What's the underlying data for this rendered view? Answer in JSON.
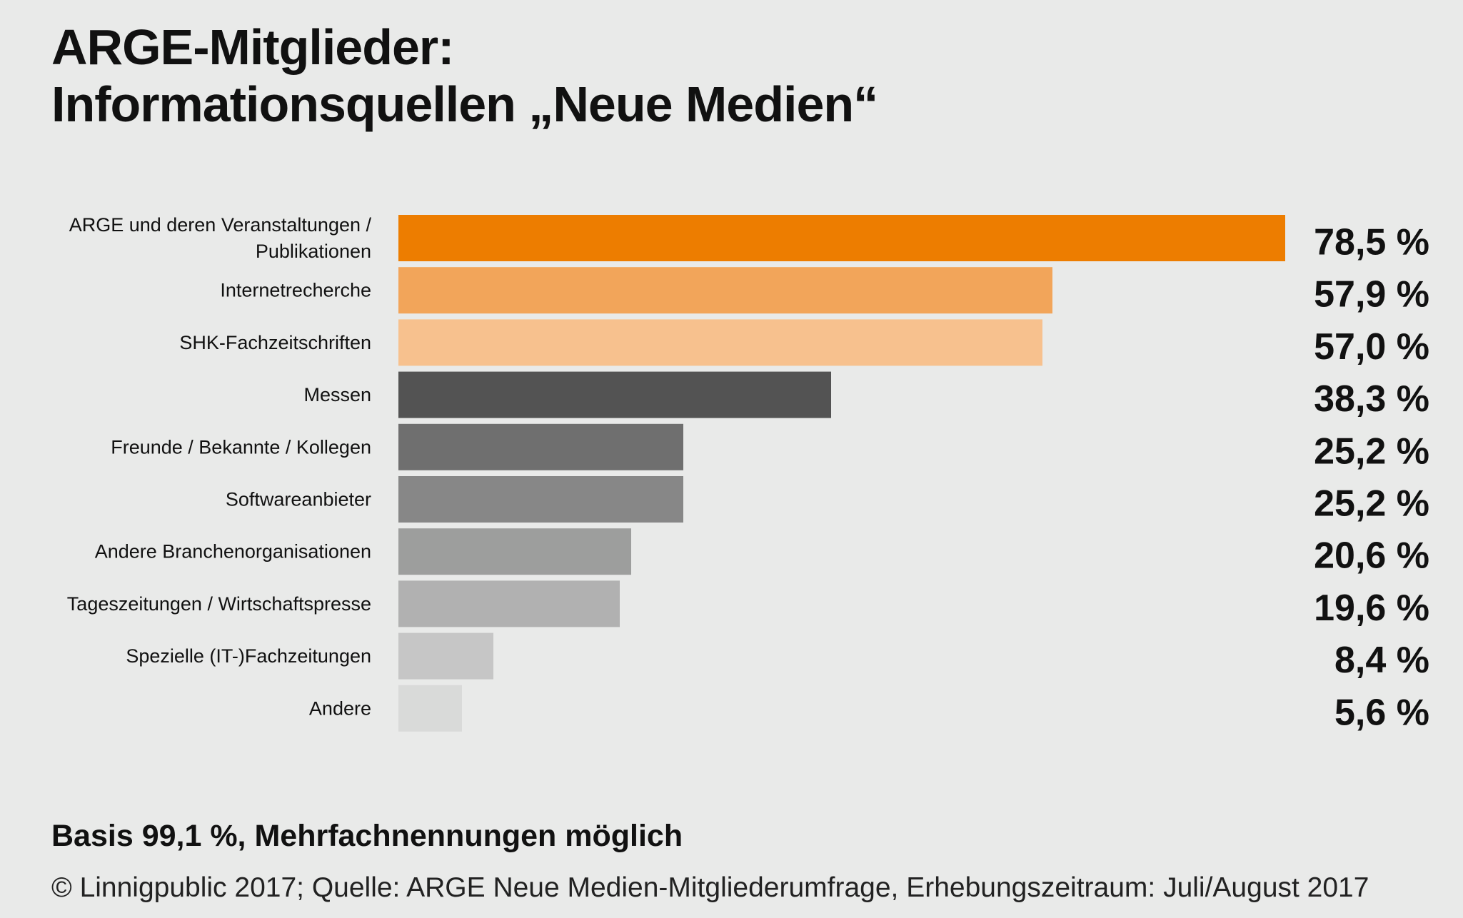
{
  "title_line1": "ARGE-Mitglieder:",
  "title_line2": "Informationsquellen „Neue Medien“",
  "note": "Basis 99,1 %, Mehrfachnennungen möglich",
  "source": "© Linnigpublic 2017; Quelle: ARGE Neue Medien-Mitgliederumfrage, Erhebungszeitraum: Juli/August 2017",
  "chart_data": {
    "type": "bar",
    "orientation": "horizontal",
    "categories": [
      "ARGE und deren Veranstaltungen / Publikationen",
      "Internetrecherche",
      "SHK-Fachzeitschriften",
      "Messen",
      "Freunde / Bekannte / Kollegen",
      "Softwareanbieter",
      "Andere Branchenorganisationen",
      "Tageszeitungen / Wirtschaftspresse",
      "Spezielle (IT-)Fachzeitungen",
      "Andere"
    ],
    "category_lines": [
      [
        "ARGE und deren Veranstaltungen /",
        "Publikationen"
      ],
      [
        "Internetrecherche"
      ],
      [
        "SHK-Fachzeitschriften"
      ],
      [
        "Messen"
      ],
      [
        "Freunde / Bekannte / Kollegen"
      ],
      [
        "Softwareanbieter"
      ],
      [
        "Andere Branchenorganisationen"
      ],
      [
        "Tageszeitungen / Wirtschaftspresse"
      ],
      [
        "Spezielle (IT-)Fachzeitungen"
      ],
      [
        "Andere"
      ]
    ],
    "values": [
      78.5,
      57.9,
      57.0,
      38.3,
      25.2,
      25.2,
      20.6,
      19.6,
      8.4,
      5.6
    ],
    "value_labels": [
      "78,5 %",
      "57,9 %",
      "57,0 %",
      "38,3 %",
      "25,2 %",
      "25,2 %",
      "20,6 %",
      "19,6 %",
      "8,4 %",
      "5,6 %"
    ],
    "colors": [
      "#ed7d00",
      "#f2a55a",
      "#f7c18e",
      "#535353",
      "#6f6f6f",
      "#878787",
      "#9d9e9d",
      "#b1b1b1",
      "#c6c6c6",
      "#d9dad9"
    ],
    "xlim": [
      0,
      78.5
    ],
    "grid": false,
    "legend": "none"
  }
}
